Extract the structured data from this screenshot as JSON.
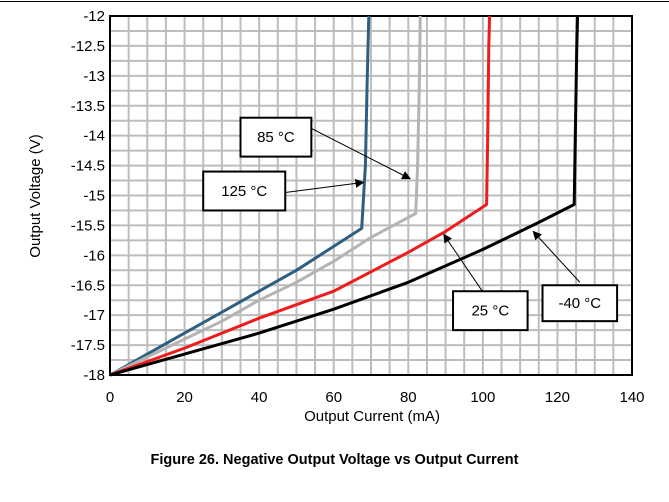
{
  "caption": "Figure 26. Negative Output Voltage vs Output Current",
  "chart_data": {
    "type": "line",
    "title": "",
    "xlabel": "Output Current (mA)",
    "ylabel": "Output Voltage (V)",
    "xlim": [
      0,
      140
    ],
    "ylim": [
      -18,
      -12
    ],
    "xticks": [
      0,
      20,
      40,
      60,
      80,
      100,
      120,
      140
    ],
    "yticks": [
      -18,
      -17.5,
      -17,
      -16.5,
      -16,
      -15.5,
      -15,
      -14.5,
      -14,
      -13.5,
      -13,
      -12.5,
      -12
    ],
    "xtick_labels": [
      "0",
      "20",
      "40",
      "60",
      "80",
      "100",
      "120",
      "140"
    ],
    "ytick_labels": [
      "-18",
      "-17.5",
      "-17",
      "-16.5",
      "-16",
      "-15.5",
      "-15",
      "-14.5",
      "-14",
      "-13.5",
      "-13",
      "-12.5",
      "-12"
    ],
    "grid": true,
    "minor_grid_x": 5,
    "minor_grid_y": 0.25,
    "series": [
      {
        "name": "125 °C",
        "color": "#2e5f80",
        "points": [
          [
            0,
            -18
          ],
          [
            10,
            -17.65
          ],
          [
            20,
            -17.3
          ],
          [
            30,
            -16.95
          ],
          [
            40,
            -16.6
          ],
          [
            50,
            -16.25
          ],
          [
            60,
            -15.85
          ],
          [
            67.5,
            -15.55
          ],
          [
            68.5,
            -14.5
          ],
          [
            69,
            -13
          ],
          [
            69.4,
            -12
          ]
        ]
      },
      {
        "name": "85 °C",
        "color": "#b4b4b4",
        "points": [
          [
            0,
            -18
          ],
          [
            10,
            -17.7
          ],
          [
            20,
            -17.4
          ],
          [
            30,
            -17.1
          ],
          [
            40,
            -16.75
          ],
          [
            50,
            -16.45
          ],
          [
            60,
            -16.1
          ],
          [
            70,
            -15.7
          ],
          [
            82,
            -15.3
          ],
          [
            82.5,
            -14.5
          ],
          [
            83,
            -13
          ],
          [
            83.2,
            -12
          ]
        ]
      },
      {
        "name": "25 °C",
        "color": "#ee1c1c",
        "points": [
          [
            0,
            -18
          ],
          [
            20,
            -17.55
          ],
          [
            40,
            -17.05
          ],
          [
            60,
            -16.6
          ],
          [
            80,
            -15.95
          ],
          [
            90,
            -15.6
          ],
          [
            101,
            -15.15
          ],
          [
            101.3,
            -14
          ],
          [
            101.6,
            -12.5
          ],
          [
            101.8,
            -12
          ]
        ]
      },
      {
        "name": "-40 °C",
        "color": "#000000",
        "points": [
          [
            0,
            -18
          ],
          [
            20,
            -17.65
          ],
          [
            40,
            -17.3
          ],
          [
            60,
            -16.9
          ],
          [
            80,
            -16.45
          ],
          [
            100,
            -15.9
          ],
          [
            115,
            -15.45
          ],
          [
            124.5,
            -15.15
          ],
          [
            124.8,
            -14
          ],
          [
            125.2,
            -12.5
          ],
          [
            125.4,
            -12
          ]
        ]
      }
    ],
    "annotations": [
      {
        "text": "85 °C",
        "series": "85 °C",
        "at": [
          80.5,
          -14.72
        ],
        "label_anchor": [
          54,
          -13.88
        ],
        "box_x": [
          35,
          54
        ],
        "box_y": [
          -14.35,
          -13.7
        ]
      },
      {
        "text": "125 °C",
        "series": "125 °C",
        "at": [
          68,
          -14.78
        ],
        "label_anchor": [
          47,
          -14.95
        ],
        "box_x": [
          25,
          47
        ],
        "box_y": [
          -15.25,
          -14.6
        ]
      },
      {
        "text": "25 °C",
        "series": "25 °C",
        "at": [
          89.5,
          -15.65
        ],
        "label_anchor": [
          101.5,
          -16.75
        ],
        "box_x": [
          92,
          112
        ],
        "box_y": [
          -17.25,
          -16.6
        ]
      },
      {
        "text": "-40 °C",
        "series": "-40 °C",
        "at": [
          113.5,
          -15.6
        ],
        "label_anchor": [
          126,
          -16.45
        ],
        "box_x": [
          116,
          136
        ],
        "box_y": [
          -17.1,
          -16.5
        ]
      }
    ]
  }
}
